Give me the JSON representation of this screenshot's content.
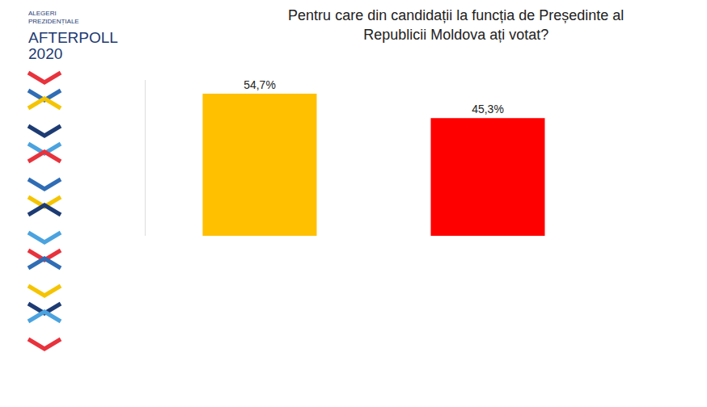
{
  "chart_data": {
    "type": "bar",
    "title": "Pentru care din candidații la funcția de Președinte al\nRepublicii Moldova ați votat?",
    "logo": {
      "label": "ALEGERI\nPREZIDENȚIALE",
      "name": "AFTERPOLL",
      "year": "2020"
    },
    "categories": [
      null,
      null
    ],
    "values": [
      54.7,
      45.3
    ],
    "value_labels": [
      "54,7%",
      "45,3%"
    ],
    "colors": [
      "#ffc000",
      "#ff0000"
    ],
    "ylim": [
      0,
      60
    ],
    "data_labels": true,
    "tick_labels": false,
    "grid": false
  }
}
